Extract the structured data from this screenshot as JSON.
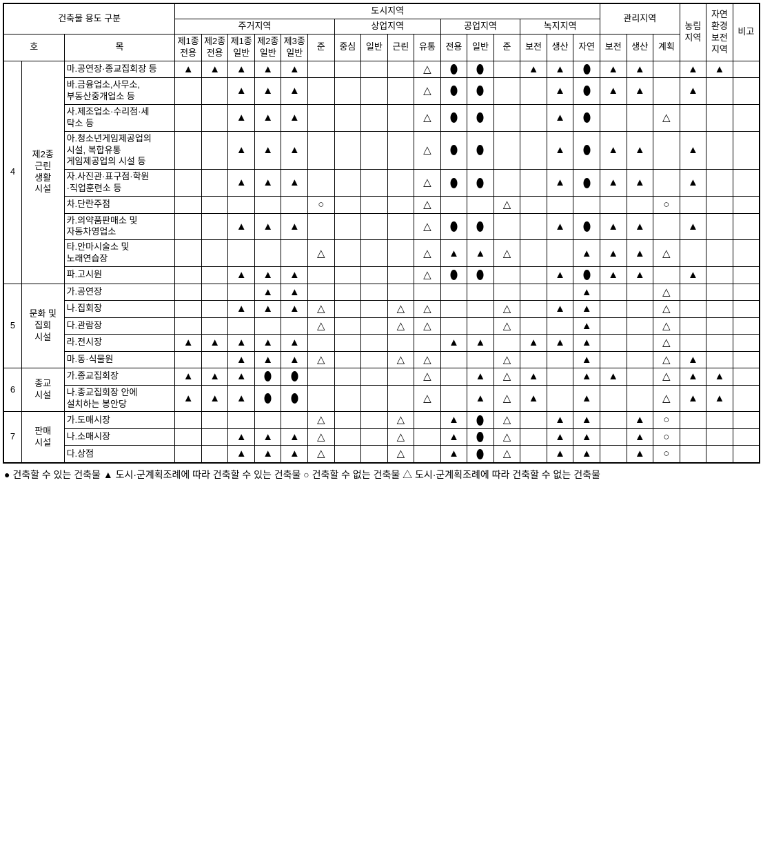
{
  "headers": {
    "title": "건축물 용도 구분",
    "urban": "도시지역",
    "residential": "주거지역",
    "commercial": "상업지역",
    "industrial": "공업지역",
    "green": "녹지지역",
    "management": "관리지역",
    "agri": "농림\n지역",
    "nature": "자연\n환경\n보전\n지역",
    "remark": "비고",
    "ho": "호",
    "mok": "목",
    "res1": "제1종\n전용",
    "res2": "제2종\n전용",
    "res3": "제1종\n일반",
    "res4": "제2종\n일반",
    "res5": "제3종\n일반",
    "res6": "준",
    "com1": "중심",
    "com2": "일반",
    "com3": "근린",
    "com4": "유통",
    "ind1": "전용",
    "ind2": "일반",
    "ind3": "준",
    "grn1": "보전",
    "grn2": "생산",
    "grn3": "자연",
    "mgt1": "보전",
    "mgt2": "생산",
    "mgt3": "계획"
  },
  "symbols": {
    "black_tri": "▲",
    "black_ellipse": "●",
    "white_tri": "△",
    "white_circle": "○"
  },
  "colors": {
    "black": "#000000",
    "white": "#ffffff"
  },
  "fontsize": {
    "cell": 13,
    "symbol": 15,
    "footer": 14
  },
  "column_widths": {
    "ho": 24,
    "cat": 56,
    "desc": 146,
    "narrow": 35
  },
  "groups": [
    {
      "no": "4",
      "cat": "제2종\n근린\n생활\n시설",
      "rows": [
        {
          "desc": "마.공연장·종교집회장 등",
          "cells": [
            "▲",
            "▲",
            "▲",
            "▲",
            "▲",
            "",
            "",
            "",
            "",
            "△",
            "●",
            "●",
            "",
            "▲",
            "▲",
            "●",
            "▲",
            "▲",
            "",
            "▲",
            "▲",
            ""
          ]
        },
        {
          "desc": "바.금융업소,사무소,\n부동산중개업소 등",
          "cells": [
            "",
            "",
            "▲",
            "▲",
            "▲",
            "",
            "",
            "",
            "",
            "△",
            "●",
            "●",
            "",
            "",
            "▲",
            "●",
            "▲",
            "▲",
            "",
            "▲",
            "",
            ""
          ]
        },
        {
          "desc": "사.제조업소·수리점·세\n탁소 등",
          "cells": [
            "",
            "",
            "▲",
            "▲",
            "▲",
            "",
            "",
            "",
            "",
            "△",
            "●",
            "●",
            "",
            "",
            "▲",
            "●",
            "",
            "",
            "△",
            "",
            "",
            ""
          ]
        },
        {
          "desc": "아.청소년게임제공업의\n시설, 복합유통\n게임제공업의 시설 등",
          "cells": [
            "",
            "",
            "▲",
            "▲",
            "▲",
            "",
            "",
            "",
            "",
            "△",
            "●",
            "●",
            "",
            "",
            "▲",
            "●",
            "▲",
            "▲",
            "",
            "▲",
            "",
            ""
          ]
        },
        {
          "desc": "자.사진관·표구점·학원\n·직업훈련소 등",
          "cells": [
            "",
            "",
            "▲",
            "▲",
            "▲",
            "",
            "",
            "",
            "",
            "△",
            "●",
            "●",
            "",
            "",
            "▲",
            "●",
            "▲",
            "▲",
            "",
            "▲",
            "",
            ""
          ]
        },
        {
          "desc": "차.단란주점",
          "cells": [
            "",
            "",
            "",
            "",
            "",
            "○",
            "",
            "",
            "",
            "△",
            "",
            "",
            "△",
            "",
            "",
            "",
            "",
            "",
            "○",
            "",
            "",
            ""
          ]
        },
        {
          "desc": "카.의약품판매소 및\n자동차영업소",
          "cells": [
            "",
            "",
            "▲",
            "▲",
            "▲",
            "",
            "",
            "",
            "",
            "△",
            "●",
            "●",
            "",
            "",
            "▲",
            "●",
            "▲",
            "▲",
            "",
            "▲",
            "",
            ""
          ]
        },
        {
          "desc": "타.안마시술소 및\n노래연습장",
          "cells": [
            "",
            "",
            "",
            "",
            "",
            "△",
            "",
            "",
            "",
            "△",
            "▲",
            "▲",
            "△",
            "",
            "",
            "▲",
            "▲",
            "▲",
            "△",
            "",
            "",
            ""
          ]
        },
        {
          "desc": "파.고시원",
          "cells": [
            "",
            "",
            "▲",
            "▲",
            "▲",
            "",
            "",
            "",
            "",
            "△",
            "●",
            "●",
            "",
            "",
            "▲",
            "●",
            "▲",
            "▲",
            "",
            "▲",
            "",
            ""
          ]
        }
      ]
    },
    {
      "no": "5",
      "cat": "문화 및\n집회\n시설",
      "rows": [
        {
          "desc": "가.공연장",
          "cells": [
            "",
            "",
            "",
            "▲",
            "▲",
            "",
            "",
            "",
            "",
            "",
            "",
            "",
            "",
            "",
            "",
            "▲",
            "",
            "",
            "△",
            "",
            "",
            ""
          ]
        },
        {
          "desc": "나.집회장",
          "cells": [
            "",
            "",
            "▲",
            "▲",
            "▲",
            "△",
            "",
            "",
            "△",
            "△",
            "",
            "",
            "△",
            "",
            "▲",
            "▲",
            "",
            "",
            "△",
            "",
            "",
            ""
          ]
        },
        {
          "desc": "다.관람장",
          "cells": [
            "",
            "",
            "",
            "",
            "",
            "△",
            "",
            "",
            "△",
            "△",
            "",
            "",
            "△",
            "",
            "",
            "▲",
            "",
            "",
            "△",
            "",
            "",
            ""
          ]
        },
        {
          "desc": "라.전시장",
          "cells": [
            "▲",
            "▲",
            "▲",
            "▲",
            "▲",
            "",
            "",
            "",
            "",
            "",
            "▲",
            "▲",
            "",
            "▲",
            "▲",
            "▲",
            "",
            "",
            "△",
            "",
            "",
            ""
          ]
        },
        {
          "desc": "마.동·식물원",
          "cells": [
            "",
            "",
            "▲",
            "▲",
            "▲",
            "△",
            "",
            "",
            "△",
            "△",
            "",
            "",
            "△",
            "",
            "",
            "▲",
            "",
            "",
            "△",
            "▲",
            "",
            ""
          ]
        }
      ]
    },
    {
      "no": "6",
      "cat": "종교\n시설",
      "rows": [
        {
          "desc": "가.종교집회장",
          "cells": [
            "▲",
            "▲",
            "▲",
            "●",
            "●",
            "",
            "",
            "",
            "",
            "△",
            "",
            "▲",
            "△",
            "▲",
            "",
            "▲",
            "▲",
            "",
            "△",
            "▲",
            "▲",
            ""
          ]
        },
        {
          "desc": "나.종교집회장 안에\n설치하는 봉안당",
          "cells": [
            "▲",
            "▲",
            "▲",
            "●",
            "●",
            "",
            "",
            "",
            "",
            "△",
            "",
            "▲",
            "△",
            "▲",
            "",
            "▲",
            "",
            "",
            "△",
            "▲",
            "▲",
            ""
          ]
        }
      ]
    },
    {
      "no": "7",
      "cat": "판매\n시설",
      "rows": [
        {
          "desc": "가.도매시장",
          "cells": [
            "",
            "",
            "",
            "",
            "",
            "△",
            "",
            "",
            "△",
            "",
            "▲",
            "●",
            "△",
            "",
            "▲",
            "▲",
            "",
            "▲",
            "○",
            "",
            "",
            ""
          ]
        },
        {
          "desc": "나.소매시장",
          "cells": [
            "",
            "",
            "▲",
            "▲",
            "▲",
            "△",
            "",
            "",
            "△",
            "",
            "▲",
            "●",
            "△",
            "",
            "▲",
            "▲",
            "",
            "▲",
            "○",
            "",
            "",
            ""
          ]
        },
        {
          "desc": "다.상점",
          "cells": [
            "",
            "",
            "▲",
            "▲",
            "▲",
            "△",
            "",
            "",
            "△",
            "",
            "▲",
            "●",
            "△",
            "",
            "▲",
            "▲",
            "",
            "▲",
            "○",
            "",
            "",
            ""
          ]
        }
      ]
    }
  ],
  "footer": "● 건축할 수 있는 건축물 ▲ 도시·군계획조례에 따라 건축할 수 있는 건축물 ○ 건축할 수 없는 건축물 △ 도시·군계획조례에 따라 건축할 수 없는 건축물"
}
